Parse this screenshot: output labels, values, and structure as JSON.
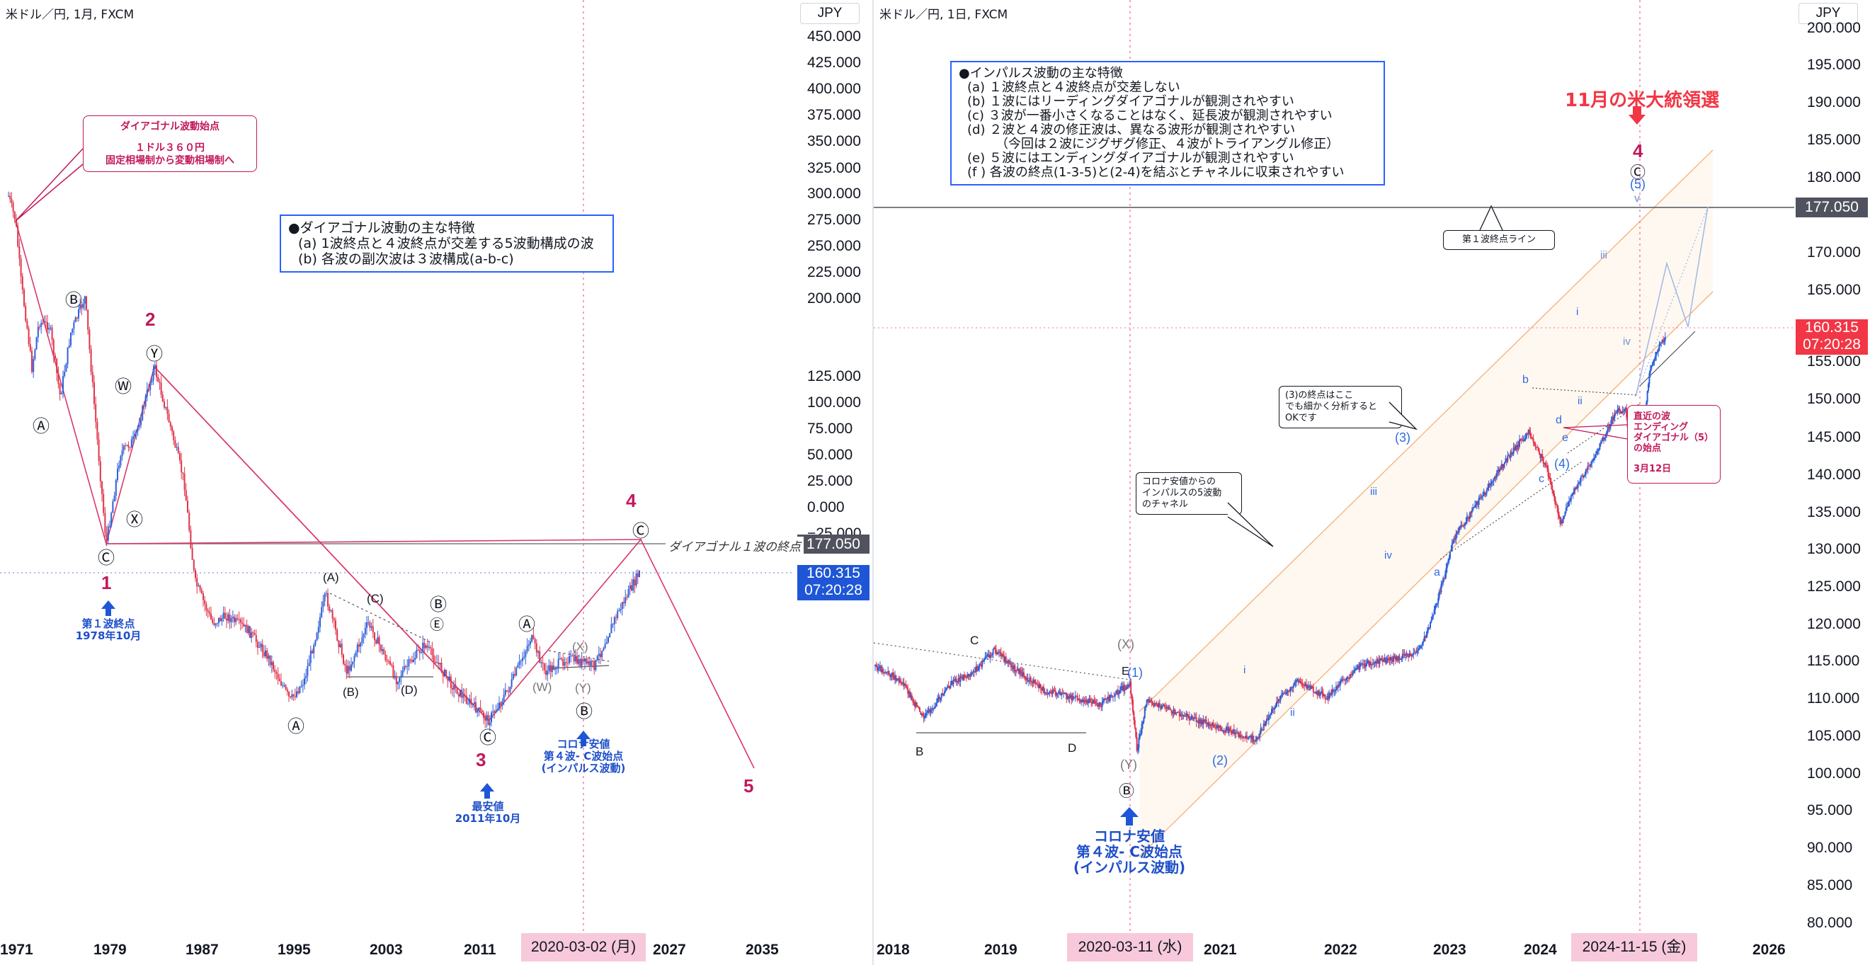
{
  "left": {
    "header": "米ドル／円, 1月, FXCM",
    "currency": "JPY",
    "y_ticks": [
      "450.000",
      "425.000",
      "400.000",
      "375.000",
      "350.000",
      "325.000",
      "300.000",
      "275.000",
      "250.000",
      "225.000",
      "200.000",
      "125.000",
      "100.000",
      "75.000",
      "50.000",
      "25.000",
      "0.000",
      "−25.000"
    ],
    "x_ticks": [
      "1971",
      "1979",
      "1987",
      "1995",
      "2003",
      "2011",
      "2027",
      "2035"
    ],
    "x_highlight": "2020-03-02 (月)",
    "price_gray": "177.050",
    "price_blue": "160.315",
    "price_blue_time": "07:20:28",
    "diagonal_line_label": "ダイアゴナル１波の終点",
    "box_start": {
      "line1": "ダイアゴナル波動始点",
      "line2": "１ドル３６０円",
      "line3": "固定相場制から変動相場制へ"
    },
    "box_features": {
      "title": "●ダイアゴナル波動の主な特徴",
      "a": "(a) 1波終点と４波終点が交差する5波動構成の波",
      "b": "(b) 各波の副次波は３波構成(a-b-c)"
    },
    "wave_major": [
      "1",
      "2",
      "3",
      "4",
      "5"
    ],
    "wave_circled": [
      "Ⓐ",
      "Ⓑ",
      "Ⓒ",
      "Ⓦ",
      "Ⓧ",
      "Ⓨ",
      "Ⓔ"
    ],
    "wave_paren": [
      "(A)",
      "(B)",
      "(C)",
      "(D)",
      "(W)",
      "(X)",
      "(Y)"
    ],
    "note_wave1": {
      "line1": "第１波終点",
      "line2": "1978年10月"
    },
    "note_low": {
      "line1": "最安値",
      "line2": "2011年10月"
    },
    "note_covid": {
      "line1": "コロナ安値",
      "line2": "第４波- C波始点",
      "line3": "(インパルス波動)"
    }
  },
  "right": {
    "header": "米ドル／円, 1日, FXCM",
    "currency": "JPY",
    "y_ticks": [
      "200.000",
      "195.000",
      "190.000",
      "185.000",
      "180.000",
      "170.000",
      "165.000",
      "155.000",
      "150.000",
      "145.000",
      "140.000",
      "135.000",
      "130.000",
      "125.000",
      "120.000",
      "115.000",
      "110.000",
      "105.000",
      "100.000",
      "95.000",
      "90.000",
      "85.000",
      "80.000"
    ],
    "x_ticks": [
      "2018",
      "2019",
      "2021",
      "2022",
      "2023",
      "2024",
      "2026"
    ],
    "x_highlight_a": "2020-03-11 (水)",
    "x_highlight_b": "2024-11-15 (金)",
    "price_gray": "177.050",
    "price_red": "160.315",
    "price_red_time": "07:20:28",
    "box_impulse": {
      "title": "●インパルス波動の主な特徴",
      "a": "(a) １波終点と４波終点が交差しない",
      "b": "(b) １波にはリーディングダイアゴナルが観測されやすい",
      "c": "(c) ３波が一番小さくなることはなく、延長波が観測されやすい",
      "d": "(d) ２波と４波の修正波は、異なる波形が観測されやすい",
      "d2": "（今回は２波にジグザグ修正、４波がトライアングル修正）",
      "e": "(e) ５波にはエンディングダイアゴナルが観測されやすい",
      "f": "(f ) 各波の終点(1-3-5)と(2-4)を結ぶとチャネルに収束されやすい"
    },
    "election": "11月の米大統領選",
    "wave1_line": "第１波終点ライン",
    "note_3end": {
      "line1": "(3)の終点はここ",
      "line2": "でも細かく分析すると",
      "line3": "OKです"
    },
    "note_channel": {
      "line1": "コロナ安値からの",
      "line2": "インパルスの5波動",
      "line3": "のチャネル"
    },
    "note_recent": {
      "line1": "直近の波",
      "line2": "エンディング",
      "line3": "ダイアゴナル（5）",
      "line4": "の始点",
      "line5": "3月12日"
    },
    "note_covid": {
      "line1": "コロナ安値",
      "line2": "第４波- C波始点",
      "line3": "(インパルス波動)"
    },
    "wave_labels": [
      "4",
      "Ⓒ",
      "(5)",
      "v",
      "iii",
      "iv",
      "i",
      "ii",
      "(3)",
      "(4)",
      "(2)",
      "(1)",
      "(X)",
      "(Y)",
      "Ⓑ",
      "E",
      "C",
      "B",
      "D",
      "a",
      "b",
      "c",
      "d",
      "e"
    ]
  },
  "chart_data": [
    {
      "type": "line",
      "title": "米ドル／円, 1月, FXCM",
      "ylabel": "JPY",
      "ylim": [
        -40,
        470
      ],
      "x": [
        1971,
        1973,
        1975,
        1978.8,
        1982.5,
        1986,
        1988,
        1990,
        1995.3,
        1998.7,
        2000,
        2002,
        2005,
        2007.5,
        2011.8,
        2015,
        2017,
        2020.2,
        2022.8,
        2024.5
      ],
      "values": [
        360,
        300,
        290,
        176,
        278,
        160,
        125,
        150,
        80,
        147,
        105,
        135,
        105,
        124,
        76,
        125,
        112,
        102,
        150,
        160
      ],
      "annotations": [
        "1",
        "2",
        "3",
        "4",
        "5"
      ]
    },
    {
      "type": "line",
      "title": "米ドル／円, 1日, FXCM",
      "ylabel": "JPY",
      "ylim": [
        79,
        202
      ],
      "x": [
        "2017-09",
        "2018-03",
        "2018-10",
        "2019-03",
        "2019-09",
        "2020-03-11",
        "2020-06",
        "2021-01",
        "2021-04",
        "2021-09",
        "2022-03",
        "2022-10",
        "2023-01",
        "2023-06",
        "2023-11",
        "2024-01",
        "2024-04",
        "2024-07"
      ],
      "values": [
        111,
        105,
        114,
        111,
        105,
        101,
        108,
        103,
        110,
        109,
        120,
        151,
        128,
        145,
        151,
        141,
        154,
        161
      ],
      "annotations": [
        "(1)",
        "(2)",
        "(3)",
        "(4)",
        "(5)"
      ]
    }
  ]
}
